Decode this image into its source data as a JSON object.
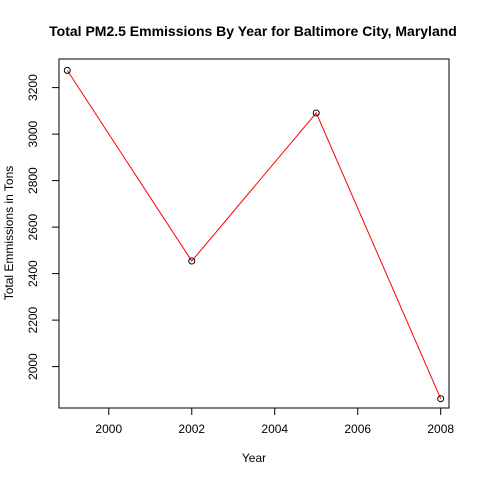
{
  "chart_data": {
    "type": "line",
    "title": "Total PM2.5 Emmissions By Year for Baltimore City, Maryland",
    "xlabel": "Year",
    "ylabel": "Total Emmissions in Tons",
    "x": [
      1999,
      2002,
      2005,
      2008
    ],
    "y": [
      3274,
      2454,
      3091,
      1862
    ],
    "xlim": [
      1998.8,
      2008.2
    ],
    "ylim": [
      1822,
      3323
    ],
    "x_ticks": [
      2000,
      2002,
      2004,
      2006,
      2008
    ],
    "y_ticks": [
      2000,
      2200,
      2400,
      2600,
      2800,
      3000,
      3200
    ],
    "line_color": "#ff0000",
    "point_marker": "open-circle",
    "grid": false,
    "legend": "none"
  }
}
